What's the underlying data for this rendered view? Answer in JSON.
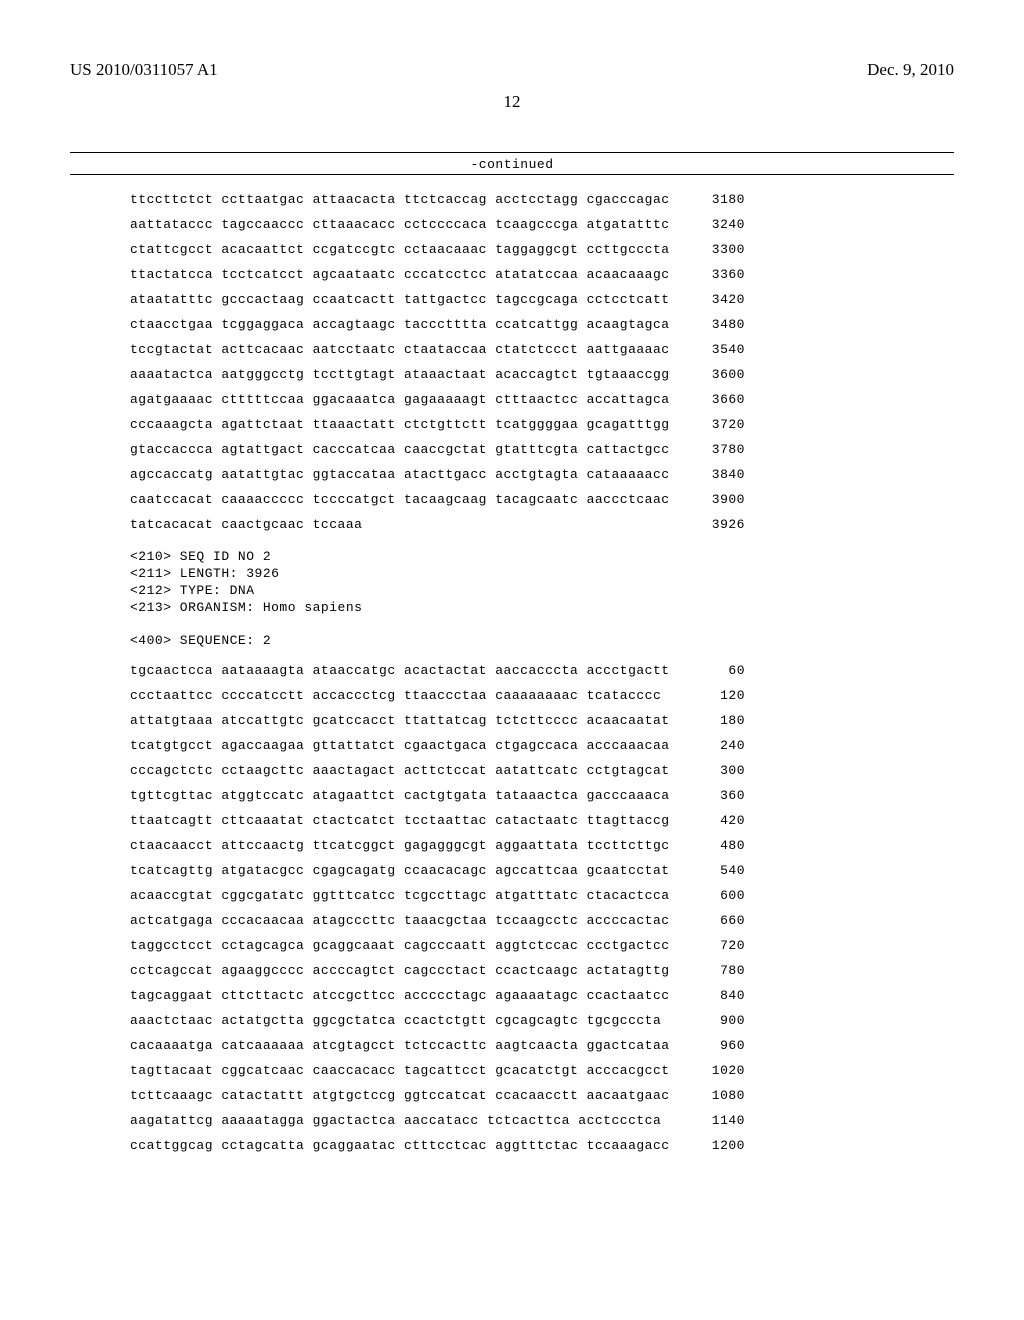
{
  "header": {
    "patent_number": "US 2010/0311057 A1",
    "date": "Dec. 9, 2010"
  },
  "page_number": "12",
  "continued_label": "-continued",
  "seq1": {
    "rows": [
      {
        "text": "ttccttctct ccttaatgac attaacacta ttctcaccag acctcctagg cgacccagac",
        "num": "3180"
      },
      {
        "text": "aattataccc tagccaaccc cttaaacacc cctccccaca tcaagcccga atgatatttc",
        "num": "3240"
      },
      {
        "text": "ctattcgcct acacaattct ccgatccgtc cctaacaaac taggaggcgt ccttgcccta",
        "num": "3300"
      },
      {
        "text": "ttactatcca tcctcatcct agcaataatc cccatcctcc atatatccaa acaacaaagc",
        "num": "3360"
      },
      {
        "text": "ataatatttc gcccactaag ccaatcactt tattgactcc tagccgcaga cctcctcatt",
        "num": "3420"
      },
      {
        "text": "ctaacctgaa tcggaggaca accagtaagc taccctttta ccatcattgg acaagtagca",
        "num": "3480"
      },
      {
        "text": "tccgtactat acttcacaac aatcctaatc ctaataccaa ctatctccct aattgaaaac",
        "num": "3540"
      },
      {
        "text": "aaaatactca aatgggcctg tccttgtagt ataaactaat acaccagtct tgtaaaccgg",
        "num": "3600"
      },
      {
        "text": "agatgaaaac ctttttccaa ggacaaatca gagaaaaagt ctttaactcc accattagca",
        "num": "3660"
      },
      {
        "text": "cccaaagcta agattctaat ttaaactatt ctctgttctt tcatggggaa gcagatttgg",
        "num": "3720"
      },
      {
        "text": "gtaccaccca agtattgact cacccatcaa caaccgctat gtatttcgta cattactgcc",
        "num": "3780"
      },
      {
        "text": "agccaccatg aatattgtac ggtaccataa atacttgacc acctgtagta cataaaaacc",
        "num": "3840"
      },
      {
        "text": "caatccacat caaaaccccc tccccatgct tacaagcaag tacagcaatc aaccctcaac",
        "num": "3900"
      },
      {
        "text": "tatcacacat caactgcaac tccaaa",
        "num": "3926"
      }
    ]
  },
  "meta": {
    "lines": [
      "<210> SEQ ID NO 2",
      "<211> LENGTH: 3926",
      "<212> TYPE: DNA",
      "<213> ORGANISM: Homo sapiens",
      "",
      "<400> SEQUENCE: 2"
    ]
  },
  "seq2": {
    "rows": [
      {
        "text": "tgcaactcca aataaaagta ataaccatgc acactactat aaccacccta accctgactt",
        "num": "60"
      },
      {
        "text": "ccctaattcc ccccatcctt accaccctcg ttaaccctaa caaaaaaaac tcatacccc",
        "num": "120"
      },
      {
        "text": "attatgtaaa atccattgtc gcatccacct ttattatcag tctcttcccc acaacaatat",
        "num": "180"
      },
      {
        "text": "tcatgtgcct agaccaagaa gttattatct cgaactgaca ctgagccaca acccaaacaa",
        "num": "240"
      },
      {
        "text": "cccagctctc cctaagcttc aaactagact acttctccat aatattcatc cctgtagcat",
        "num": "300"
      },
      {
        "text": "tgttcgttac atggtccatc atagaattct cactgtgata tataaactca gacccaaaca",
        "num": "360"
      },
      {
        "text": "ttaatcagtt cttcaaatat ctactcatct tcctaattac catactaatc ttagttaccg",
        "num": "420"
      },
      {
        "text": "ctaacaacct attccaactg ttcatcggct gagagggcgt aggaattata tccttcttgc",
        "num": "480"
      },
      {
        "text": "tcatcagttg atgatacgcc cgagcagatg ccaacacagc agccattcaa gcaatcctat",
        "num": "540"
      },
      {
        "text": "acaaccgtat cggcgatatc ggtttcatcc tcgccttagc atgatttatc ctacactcca",
        "num": "600"
      },
      {
        "text": "actcatgaga cccacaacaa atagcccttc taaacgctaa tccaagcctc accccactac",
        "num": "660"
      },
      {
        "text": "taggcctcct cctagcagca gcaggcaaat cagcccaatt aggtctccac ccctgactcc",
        "num": "720"
      },
      {
        "text": "cctcagccat agaaggcccc accccagtct cagccctact ccactcaagc actatagttg",
        "num": "780"
      },
      {
        "text": "tagcaggaat cttcttactc atccgcttcc accccctagc agaaaatagc ccactaatcc",
        "num": "840"
      },
      {
        "text": "aaactctaac actatgctta ggcgctatca ccactctgtt cgcagcagtc tgcgcccta",
        "num": "900"
      },
      {
        "text": "cacaaaatga catcaaaaaa atcgtagcct tctccacttc aagtcaacta ggactcataa",
        "num": "960"
      },
      {
        "text": "tagttacaat cggcatcaac caaccacacc tagcattcct gcacatctgt acccacgcct",
        "num": "1020"
      },
      {
        "text": "tcttcaaagc catactattt atgtgctccg ggtccatcat ccacaacctt aacaatgaac",
        "num": "1080"
      },
      {
        "text": "aagatattcg aaaaatagga ggactactca aaccatacc tctcacttca acctccctca",
        "num": "1140"
      },
      {
        "text": "ccattggcag cctagcatta gcaggaatac ctttcctcac aggtttctac tccaaagacc",
        "num": "1200"
      }
    ]
  },
  "colors": {
    "text": "#000000",
    "background": "#ffffff",
    "divider": "#000000"
  },
  "typography": {
    "header_font": "Times New Roman",
    "header_fontsize": 17,
    "mono_font": "Courier New",
    "mono_fontsize": 13
  }
}
